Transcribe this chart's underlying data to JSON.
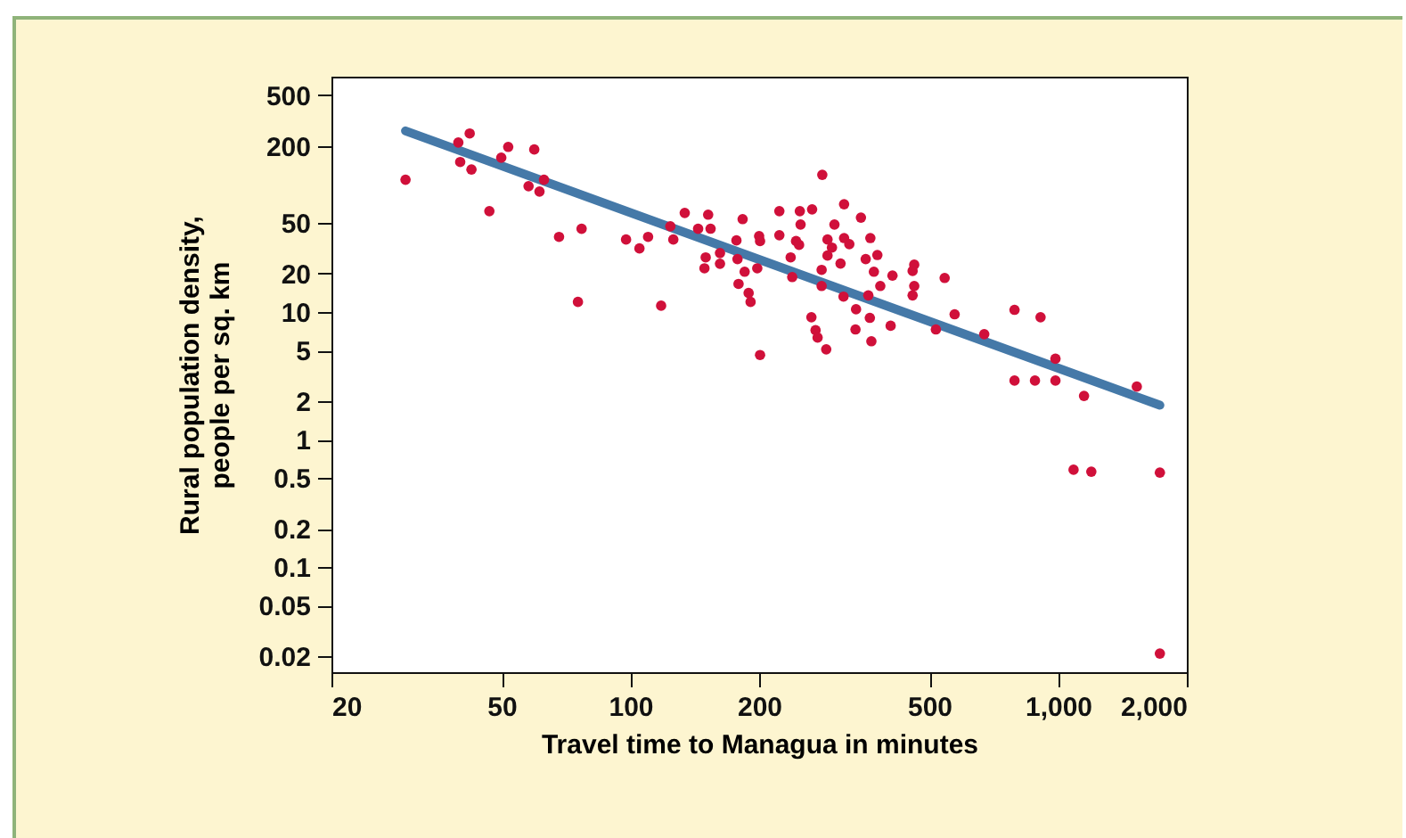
{
  "chart_data": {
    "type": "scatter",
    "xlabel": "Travel time to Managua in minutes",
    "ylabel": "Rural population density,\npeople per sq. km",
    "log": "xy",
    "marker": "circle",
    "xlim": [
      20,
      2000
    ],
    "ylim": [
      0.015,
      700
    ],
    "xticks": [
      20,
      50,
      100,
      200,
      500,
      {
        "value": 1000,
        "label": "1,000"
      },
      {
        "value": 2000,
        "label": "2,000"
      }
    ],
    "yticks": [
      500,
      200,
      50,
      20,
      10,
      5,
      2,
      1,
      0.5,
      0.2,
      0.1,
      0.05,
      0.02
    ],
    "series": [
      {
        "type": "scatter",
        "color": "#d0103a",
        "x": [
          29.8,
          39.6,
          42.1,
          40,
          42.5,
          46.8,
          49.9,
          51.8,
          59.6,
          57.8,
          61.3,
          62.8,
          68.1,
          76.9,
          75.4,
          97.7,
          105,
          110,
          118,
          124,
          126,
          134,
          144,
          152,
          149,
          150,
          154,
          162,
          162,
          177,
          178,
          179,
          183,
          185,
          189,
          191,
          198,
          200,
          201,
          201,
          223,
          223,
          237,
          239,
          244,
          248,
          250,
          249,
          266,
          265,
          271,
          274,
          281,
          280,
          280,
          287,
          289,
          289,
          296,
          300,
          310,
          316,
          316,
          325,
          315,
          336,
          337,
          346,
          355,
          360,
          363,
          364,
          366,
          371,
          378,
          384,
          406,
          410,
          457,
          461,
          457,
          461,
          543,
          518,
          573,
          672,
          791,
          791,
          883,
          910,
          986,
          986,
          1150,
          1087,
          1196,
          1528,
          1730,
          1730
        ],
        "values": [
          109,
          213,
          251,
          150,
          131,
          61.8,
          162,
          197,
          188,
          97,
          88,
          109,
          38.8,
          44.9,
          12,
          37,
          31.5,
          38.8,
          11.2,
          47,
          37,
          59.8,
          44.9,
          58,
          22,
          26.8,
          45,
          23.9,
          29,
          36.4,
          26,
          16.6,
          53.5,
          20.7,
          14.1,
          12,
          22,
          39.4,
          36,
          4.6,
          61.8,
          40,
          26.8,
          18.8,
          36,
          33.6,
          48.5,
          61.8,
          63.8,
          9.1,
          7.2,
          6.3,
          119,
          21.4,
          16,
          5.1,
          37,
          27.7,
          32,
          48.5,
          24,
          70,
          38,
          34,
          13.2,
          7.3,
          10.5,
          55,
          26,
          13.5,
          9,
          38,
          5.9,
          20.7,
          28,
          16,
          7.8,
          19.3,
          21,
          16,
          13.5,
          23.5,
          18.5,
          7.3,
          9.6,
          6.7,
          10.4,
          2.9,
          2.9,
          9.1,
          4.3,
          2.9,
          2.2,
          0.58,
          0.56,
          2.6,
          0.55,
          0.021
        ]
      },
      {
        "type": "line",
        "marker": "none",
        "color": "#4579a8",
        "x": [
          29.8,
          1730
        ],
        "values": [
          263,
          1.86
        ]
      }
    ]
  }
}
